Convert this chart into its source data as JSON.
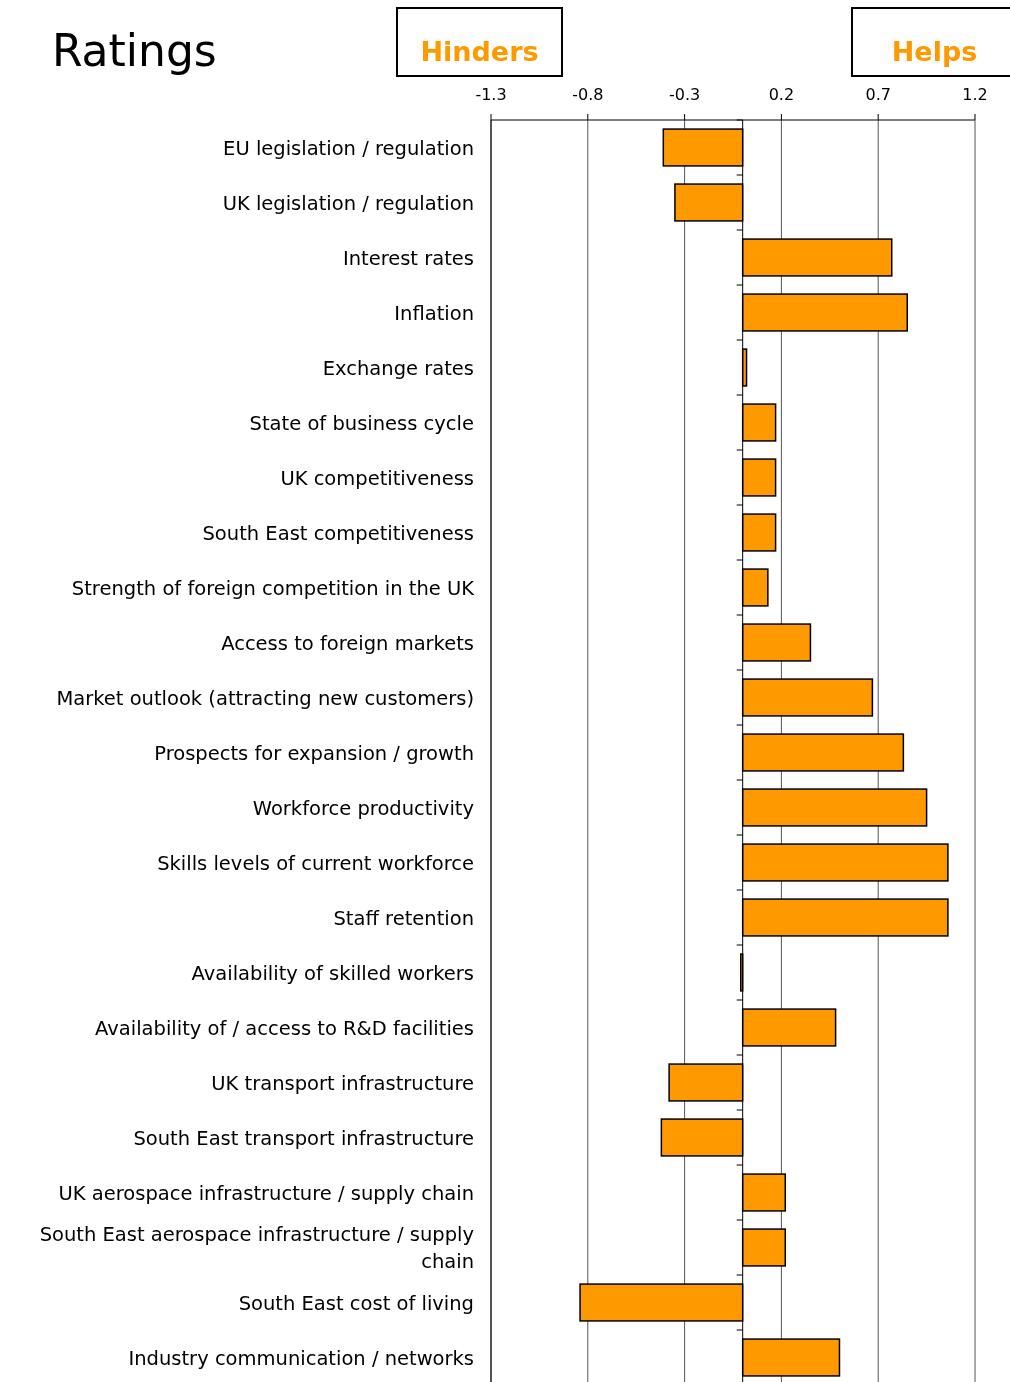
{
  "chart_data": {
    "type": "bar",
    "orientation": "horizontal",
    "title": "Ratings",
    "categories": [
      "EU legislation / regulation",
      "UK legislation / regulation",
      "Interest rates",
      "Inflation",
      "Exchange rates",
      "State of business cycle",
      "UK competitiveness",
      "South East competitiveness",
      "Strength of foreign competition in the UK",
      "Access to foreign markets",
      "Market outlook (attracting new customers)",
      "Prospects for expansion / growth",
      "Workforce productivity",
      "Skills levels of current workforce",
      "Staff retention",
      "Availability of skilled workers",
      "Availability of / access to R&D facilities",
      "UK transport infrastructure",
      "South East transport infrastructure",
      "UK aerospace infrastructure / supply chain",
      "South East aerospace infrastructure / supply chain",
      "South East cost of living",
      "Industry communication / networks"
    ],
    "values": [
      -0.41,
      -0.35,
      0.77,
      0.85,
      0.02,
      0.17,
      0.17,
      0.17,
      0.13,
      0.35,
      0.67,
      0.83,
      0.95,
      1.06,
      1.06,
      -0.01,
      0.48,
      -0.38,
      -0.42,
      0.22,
      0.22,
      -0.84,
      0.5
    ],
    "color": "#ff9900",
    "xlim": [
      -1.3,
      1.2
    ],
    "xticks": [
      -1.3,
      -0.8,
      -0.3,
      0.2,
      0.7,
      1.2
    ],
    "grid": "x",
    "annotations": [
      "Hinders",
      "Helps"
    ]
  }
}
